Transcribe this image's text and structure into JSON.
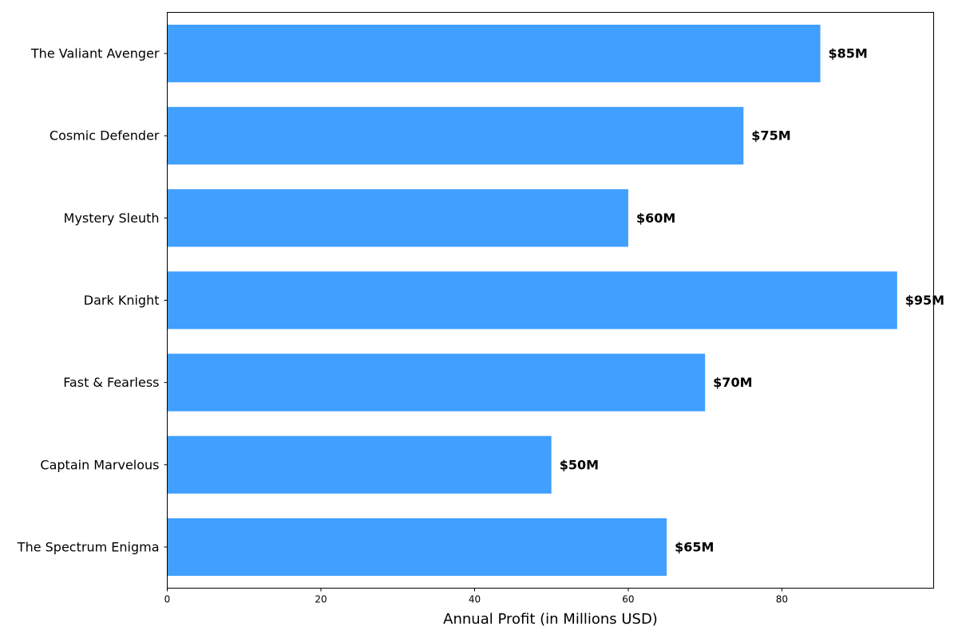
{
  "chart_data": {
    "type": "bar",
    "orientation": "horizontal",
    "categories": [
      "The Valiant Avenger",
      "Cosmic Defender",
      "Mystery Sleuth",
      "Dark Knight",
      "Fast & Fearless",
      "Captain Marvelous",
      "The Spectrum Enigma"
    ],
    "values": [
      85,
      75,
      60,
      95,
      70,
      50,
      65
    ],
    "data_labels": [
      "$85M",
      "$75M",
      "$60M",
      "$95M",
      "$70M",
      "$50M",
      "$65M"
    ],
    "xlabel": "Annual Profit (in Millions USD)",
    "ylabel": "",
    "title": "",
    "xlim": [
      0,
      99.75
    ],
    "xticks": [
      0,
      20,
      40,
      60,
      80
    ],
    "grid": false,
    "bar_color": "#409FFF"
  }
}
